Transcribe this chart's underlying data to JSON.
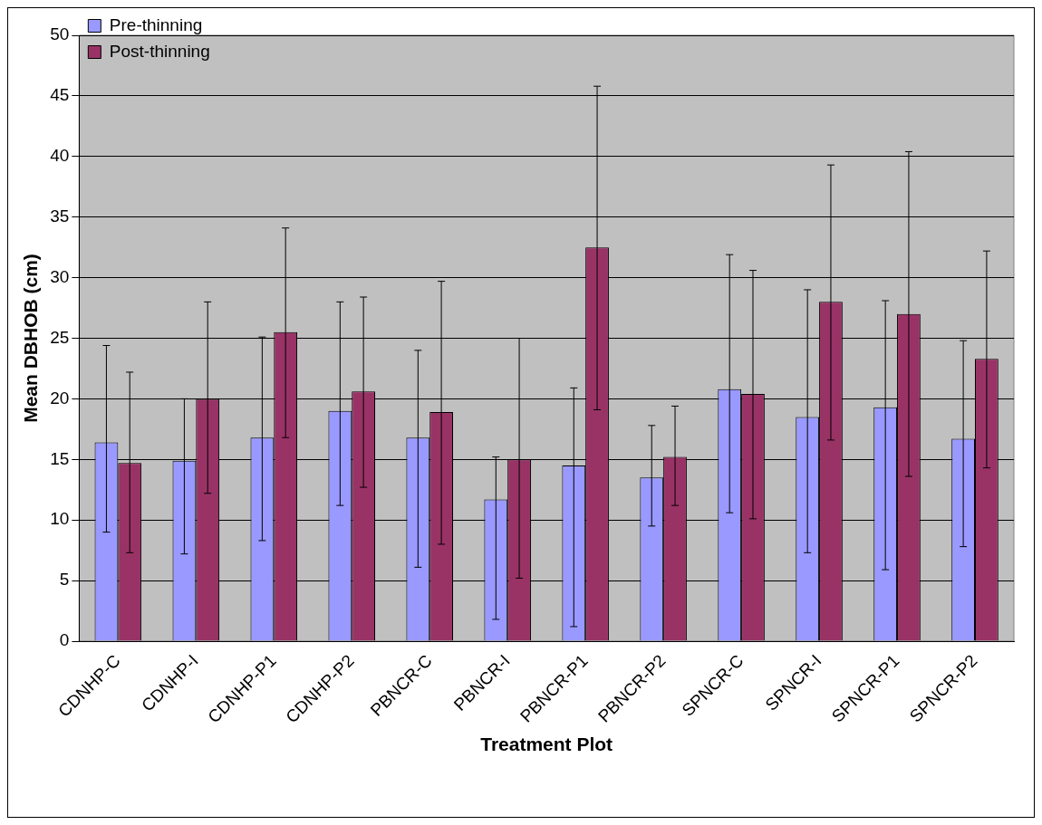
{
  "chart_data": {
    "type": "bar",
    "xlabel": "Treatment Plot",
    "ylabel": "Mean DBHOB (cm)",
    "categories": [
      "CDNHP-C",
      "CDNHP-I",
      "CDNHP-P1",
      "CDNHP-P2",
      "PBNCR-C",
      "PBNCR-I",
      "PBNCR-P1",
      "PBNCR-P2",
      "SPNCR-C",
      "SPNCR-I",
      "SPNCR-P1",
      "SPNCR-P2"
    ],
    "series": [
      {
        "name": "Pre-thinning",
        "color": "#9999ff",
        "values": [
          16.4,
          14.9,
          16.8,
          19,
          16.8,
          11.7,
          14.5,
          13.5,
          20.8,
          18.5,
          19.3,
          16.7
        ],
        "errors": [
          [
            9,
            24.4
          ],
          [
            7.2,
            20
          ],
          [
            8.3,
            25.1
          ],
          [
            11.2,
            28
          ],
          [
            6.1,
            24
          ],
          [
            1.8,
            15.2
          ],
          [
            1.2,
            20.9
          ],
          [
            9.5,
            17.8
          ],
          [
            10.6,
            31.9
          ],
          [
            7.3,
            29
          ],
          [
            5.9,
            28.1
          ],
          [
            7.8,
            24.8
          ]
        ]
      },
      {
        "name": "Post-thinning",
        "color": "#993366",
        "values": [
          14.7,
          20,
          25.5,
          20.6,
          18.9,
          15,
          32.5,
          15.2,
          20.4,
          28,
          27,
          23.3
        ],
        "errors": [
          [
            7.3,
            22.2
          ],
          [
            12.2,
            28
          ],
          [
            16.8,
            34.1
          ],
          [
            12.7,
            28.4
          ],
          [
            8,
            29.7
          ],
          [
            5.2,
            25
          ],
          [
            19.1,
            45.8
          ],
          [
            11.2,
            19.4
          ],
          [
            10.1,
            30.6
          ],
          [
            16.6,
            39.3
          ],
          [
            13.6,
            40.4
          ],
          [
            14.3,
            32.2
          ]
        ]
      }
    ],
    "ylim": [
      0,
      50
    ],
    "yticks": [
      0,
      5,
      10,
      15,
      20,
      25,
      30,
      35,
      40,
      45,
      50
    ],
    "grid": "y",
    "legend": "top left"
  }
}
